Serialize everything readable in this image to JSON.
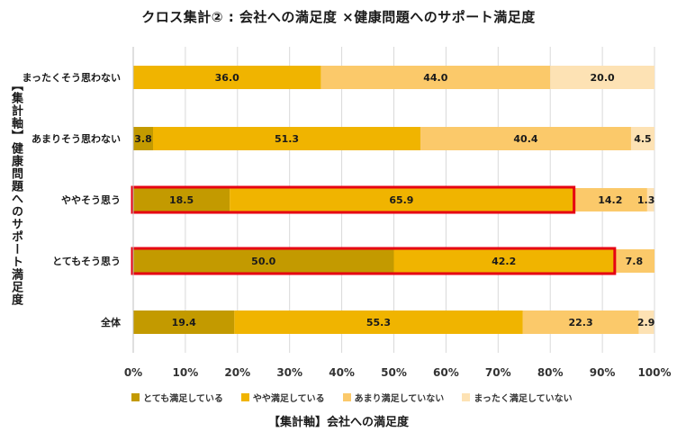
{
  "chart_data": {
    "type": "bar",
    "orientation": "horizontal",
    "stacked": true,
    "title": "クロス集計② : 会社への満足度 ×健康問題へのサポート満足度",
    "xlabel": "【集計軸】会社への満足度",
    "ylabel": "【集計軸】健康問題へのサポート満足度",
    "xlim": [
      0,
      100
    ],
    "x_ticks": [
      "0%",
      "10%",
      "20%",
      "30%",
      "40%",
      "50%",
      "60%",
      "70%",
      "80%",
      "90%",
      "100%"
    ],
    "categories": [
      "まったくそう思わない",
      "あまりそう思わない",
      "ややそう思う",
      "とてもそう思う",
      "全体"
    ],
    "series": [
      {
        "name": "とても満足している",
        "color": "#c39a00",
        "values": [
          0,
          3.8,
          18.5,
          50.0,
          19.4
        ]
      },
      {
        "name": "やや満足している",
        "color": "#f0b400",
        "values": [
          36.0,
          51.3,
          65.9,
          42.2,
          55.3
        ]
      },
      {
        "name": "あまり満足していない",
        "color": "#fbc96a",
        "values": [
          44.0,
          40.4,
          14.2,
          7.8,
          22.3
        ]
      },
      {
        "name": "まったく満足していない",
        "color": "#fde2b4",
        "values": [
          20.0,
          4.5,
          1.3,
          0,
          2.9
        ]
      }
    ],
    "data_labels": [
      [
        "",
        "36.0",
        "44.0",
        "20.0"
      ],
      [
        "3.8",
        "51.3",
        "40.4",
        "4.5"
      ],
      [
        "18.5",
        "65.9",
        "14.2",
        "1.3"
      ],
      [
        "50.0",
        "42.2",
        "7.8",
        ""
      ],
      [
        "19.4",
        "55.3",
        "22.3",
        "2.9"
      ]
    ],
    "highlighted_rows": [
      2,
      3
    ],
    "highlight_color": "#e60012",
    "grid": true,
    "legend_position": "bottom"
  }
}
